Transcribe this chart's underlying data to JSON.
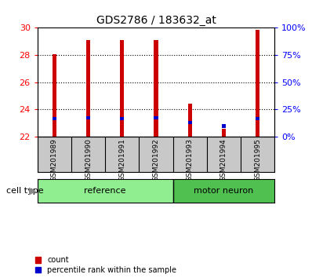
{
  "title": "GDS2786 / 183632_at",
  "samples": [
    "GSM201989",
    "GSM201990",
    "GSM201991",
    "GSM201992",
    "GSM201993",
    "GSM201994",
    "GSM201995"
  ],
  "bar_bottom": 22,
  "count_values": [
    28.05,
    29.1,
    29.1,
    29.1,
    24.4,
    22.6,
    29.85
  ],
  "percentile_values": [
    23.2,
    23.25,
    23.2,
    23.25,
    22.95,
    22.65,
    23.2
  ],
  "percentile_heights": [
    0.25,
    0.25,
    0.25,
    0.25,
    0.2,
    0.25,
    0.25
  ],
  "bar_width": 0.12,
  "ylim_left": [
    22,
    30
  ],
  "ylim_right": [
    0,
    100
  ],
  "yticks_left": [
    22,
    24,
    26,
    28,
    30
  ],
  "yticks_right": [
    0,
    25,
    50,
    75,
    100
  ],
  "ytick_labels_right": [
    "0%",
    "25%",
    "50%",
    "75%",
    "100%"
  ],
  "left_tick_color": "red",
  "right_tick_color": "blue",
  "count_color": "#cc0000",
  "percentile_color": "#0000cc",
  "bg_color": "#c8c8c8",
  "green_light": "#90EE90",
  "green_dark": "#50C050",
  "ref_count": 4,
  "mn_count": 3,
  "cell_type_label": "cell type",
  "legend_count": "count",
  "legend_percentile": "percentile rank within the sample"
}
